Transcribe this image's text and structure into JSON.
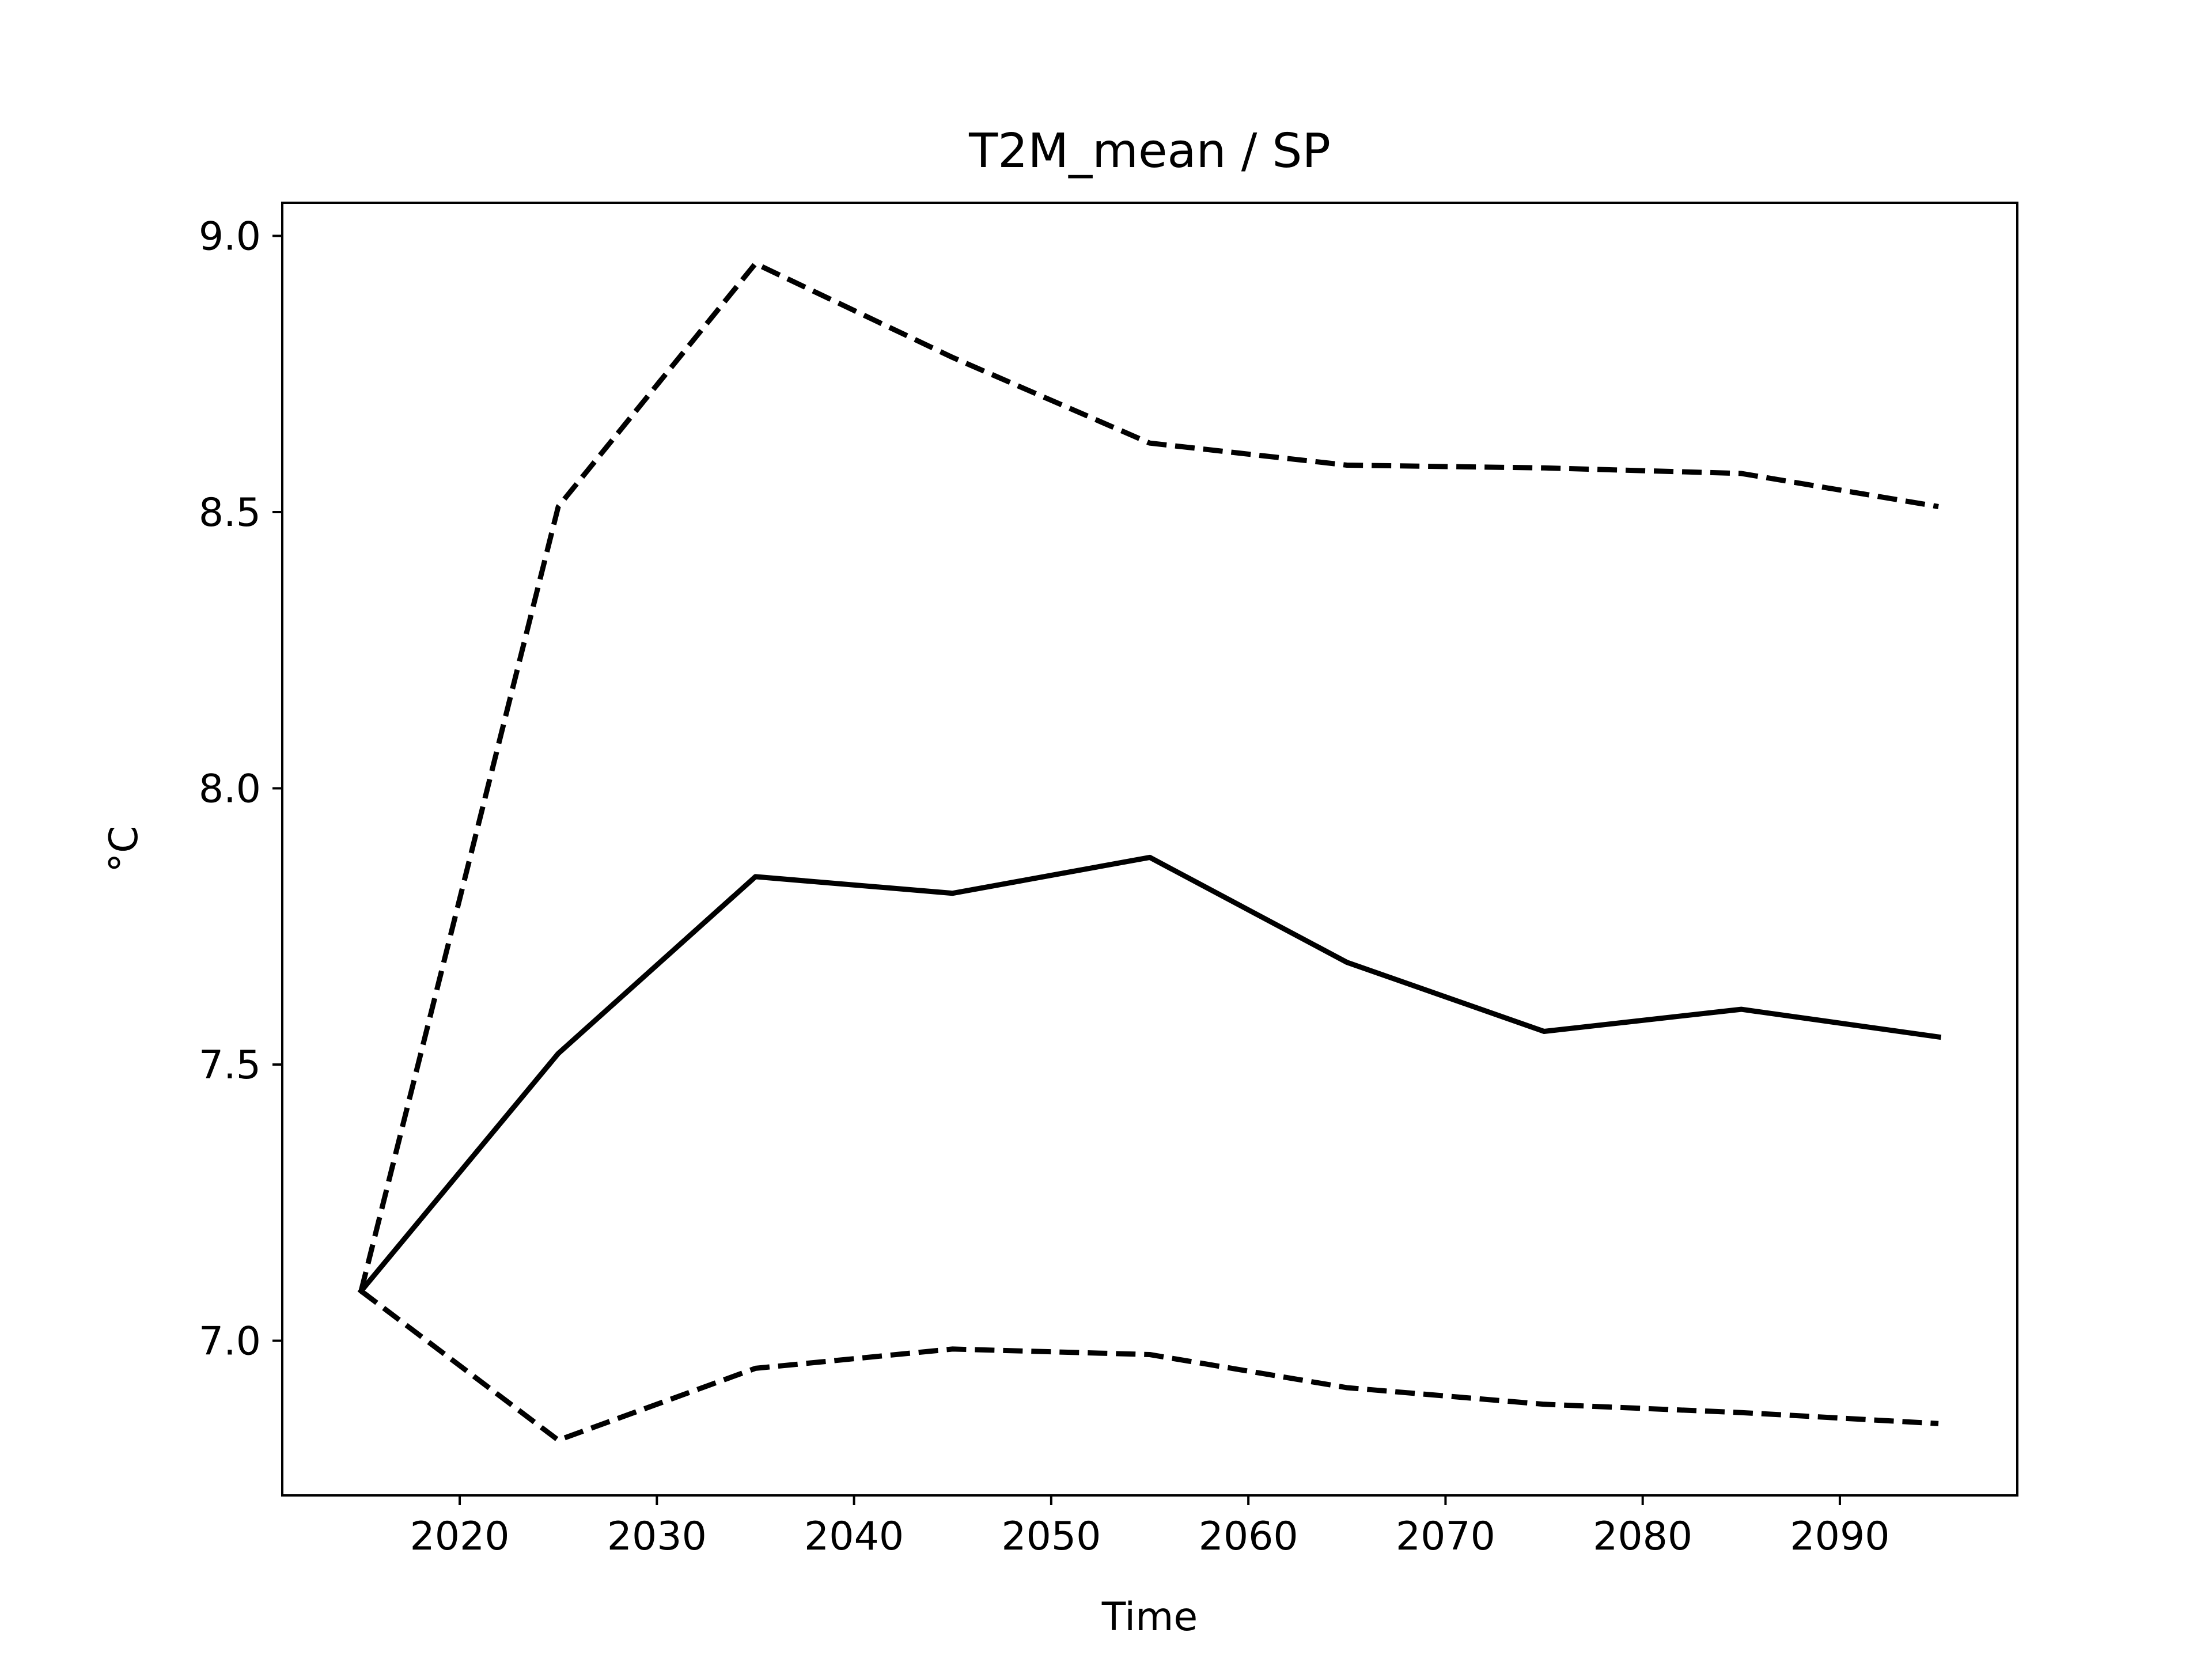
{
  "chart_data": {
    "type": "line",
    "title": "T2M_mean / SP",
    "xlabel": "Time",
    "ylabel": "°C",
    "x": [
      2015,
      2025,
      2035,
      2045,
      2055,
      2065,
      2075,
      2085,
      2095
    ],
    "series": [
      {
        "style": "solid",
        "color": "#000000",
        "values": [
          7.09,
          7.52,
          7.84,
          7.81,
          7.875,
          7.685,
          7.56,
          7.6,
          7.55
        ]
      },
      {
        "style": "dashed",
        "color": "#000000",
        "values": [
          7.09,
          8.51,
          8.95,
          8.78,
          8.625,
          8.585,
          8.58,
          8.57,
          8.51
        ]
      },
      {
        "style": "dashed",
        "color": "#000000",
        "values": [
          7.09,
          6.82,
          6.95,
          6.985,
          6.975,
          6.915,
          6.885,
          6.87,
          6.85
        ]
      }
    ],
    "xlim": [
      2011,
      2099
    ],
    "ylim": [
      6.72,
      9.06
    ],
    "xticks": [
      2020,
      2030,
      2040,
      2050,
      2060,
      2070,
      2080,
      2090
    ],
    "xtick_labels": [
      "2020",
      "2030",
      "2040",
      "2050",
      "2060",
      "2070",
      "2080",
      "2090"
    ],
    "yticks": [
      7.0,
      7.5,
      8.0,
      8.5,
      9.0
    ],
    "ytick_labels": [
      "7.0",
      "7.5",
      "8.0",
      "8.5",
      "9.0"
    ],
    "grid": false,
    "legend": "none"
  }
}
